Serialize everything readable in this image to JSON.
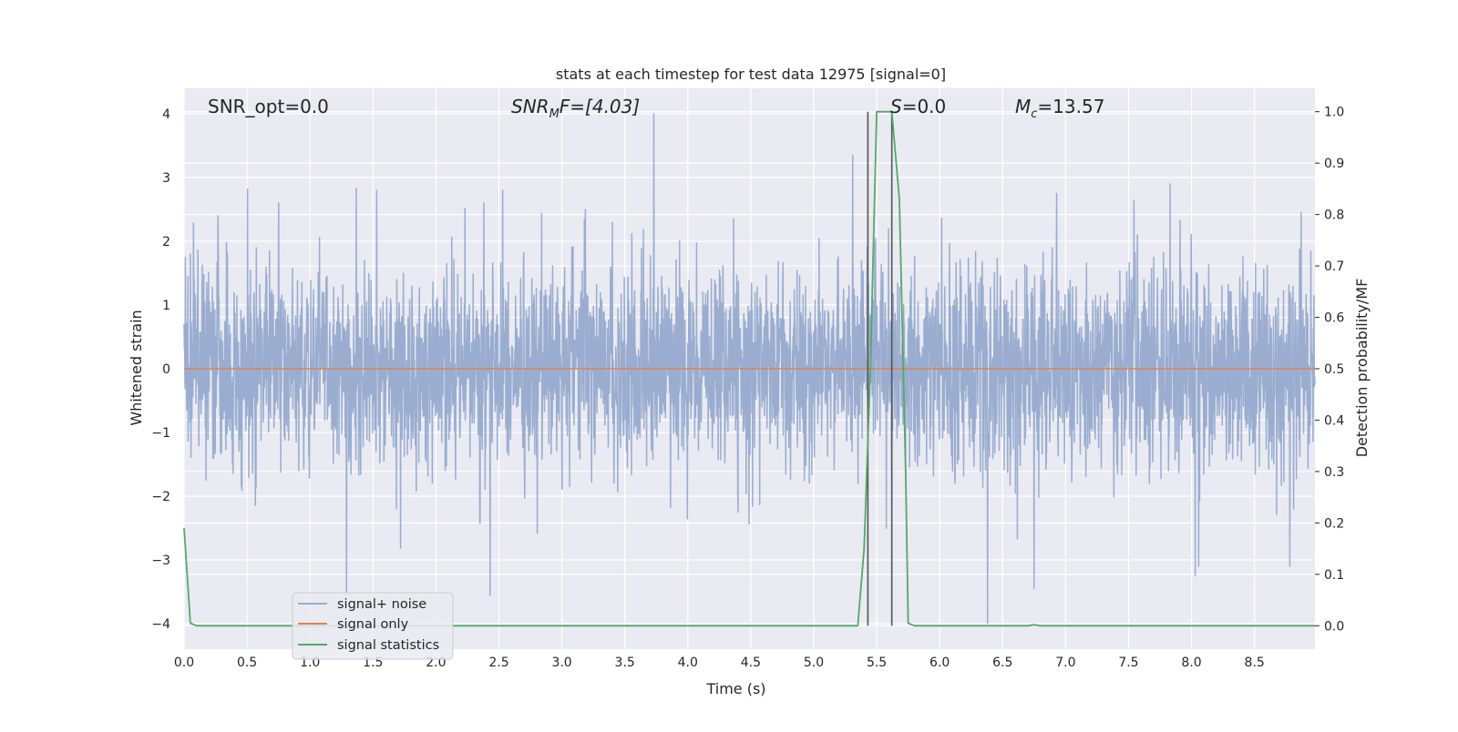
{
  "chart_data": {
    "type": "line",
    "title": "stats at each timestep for test data 12975 [signal=0]",
    "xlabel": "Time (s)",
    "ylabel_left": "Whitened strain",
    "ylabel_right": "Detection probability/MF",
    "xlim": [
      0.0,
      8.98
    ],
    "ylim_left": [
      -4.4,
      4.4
    ],
    "ylim_right": [
      -0.0455,
      1.0455
    ],
    "x_ticks": [
      "0.0",
      "0.5",
      "1.0",
      "1.5",
      "2.0",
      "2.5",
      "3.0",
      "3.5",
      "4.0",
      "4.5",
      "5.0",
      "5.5",
      "6.0",
      "6.5",
      "7.0",
      "7.5",
      "8.0",
      "8.5"
    ],
    "y_left_ticks": [
      "4",
      "3",
      "2",
      "1",
      "0",
      "−1",
      "−2",
      "−3",
      "−4"
    ],
    "y_right_ticks": [
      "1.0",
      "0.9",
      "0.8",
      "0.7",
      "0.6",
      "0.5",
      "0.4",
      "0.3",
      "0.2",
      "0.1",
      "0.0"
    ],
    "grid": true,
    "legend_position": "lower-left",
    "annotations": {
      "snr_opt": "SNR_opt=0.0",
      "snr_mf_label": "SNR",
      "snr_mf_sub": "M",
      "snr_mf_value": "F=[4.03]",
      "s_label": "S",
      "s_value": "=0.0",
      "mc_label": "M",
      "mc_sub": "c",
      "mc_value": "=13.57"
    },
    "series": [
      {
        "name": "signal+ noise",
        "color": "#9aadd0",
        "axis": "left",
        "description": "whitened noise, approx Gaussian, sigma ~0.8",
        "peak_positive": [
          [
            0.03,
            1.45
          ],
          [
            0.05,
            1.8
          ],
          [
            0.27,
            2.4
          ],
          [
            0.75,
            2.6
          ],
          [
            1.53,
            2.8
          ],
          [
            2.38,
            2.6
          ],
          [
            2.53,
            2.8
          ],
          [
            3.73,
            4.0
          ],
          [
            5.31,
            3.35
          ],
          [
            6.93,
            2.75
          ],
          [
            7.83,
            2.9
          ],
          [
            8.87,
            2.45
          ]
        ],
        "peak_negative": [
          [
            1.29,
            -3.5
          ],
          [
            2.43,
            -3.55
          ],
          [
            4.4,
            -2.25
          ],
          [
            6.38,
            -4.0
          ],
          [
            6.75,
            -3.45
          ],
          [
            8.03,
            -3.25
          ],
          [
            8.78,
            -3.1
          ]
        ]
      },
      {
        "name": "signal only",
        "color": "#dd8452",
        "axis": "left",
        "x": [
          0.0,
          8.98
        ],
        "y": [
          0.0,
          0.0
        ]
      },
      {
        "name": "signal statistics",
        "color": "#55a868",
        "axis": "right",
        "x": [
          0.0,
          0.05,
          0.1,
          0.15,
          5.35,
          5.4,
          5.45,
          5.5,
          5.55,
          5.6,
          5.62,
          5.68,
          5.73,
          5.75,
          5.8,
          6.7,
          6.75,
          6.8,
          8.98
        ],
        "y": [
          0.19,
          0.005,
          0.0,
          0.0,
          0.0,
          0.15,
          0.5,
          1.0,
          1.0,
          1.0,
          1.0,
          0.83,
          0.3,
          0.005,
          0.0,
          0.0,
          0.002,
          0.0,
          0.0
        ]
      }
    ],
    "vertical_markers": {
      "color": "#555555",
      "x": [
        5.43,
        5.62
      ],
      "y_from": 0.0,
      "y_to": 1.0
    }
  },
  "colors": {
    "axes_bg": "#eaeaf2",
    "grid": "#ffffff",
    "text": "#262626"
  }
}
